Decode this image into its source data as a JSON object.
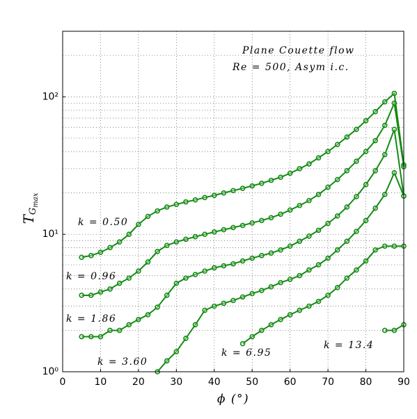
{
  "chart_data": {
    "type": "line",
    "title_line1": "Plane Couette flow",
    "title_line2": "Re = 500,  Asym i.c.",
    "x_label": "ϕ (°)",
    "y_label": "T",
    "y_label_sub": "G",
    "y_label_subsub": "max",
    "x": [
      5,
      7.5,
      10,
      12.5,
      15,
      17.5,
      20,
      22.5,
      25,
      27.5,
      30,
      32.5,
      35,
      37.5,
      40,
      42.5,
      45,
      47.5,
      50,
      52.5,
      55,
      57.5,
      60,
      62.5,
      65,
      67.5,
      70,
      72.5,
      75,
      77.5,
      80,
      82.5,
      85,
      87.5,
      90
    ],
    "series": [
      {
        "name": "k = 0.50",
        "color": "#138a13",
        "values": [
          6.8,
          7.0,
          7.4,
          8.0,
          8.8,
          10.0,
          11.8,
          13.5,
          14.8,
          15.8,
          16.5,
          17.2,
          17.8,
          18.5,
          19.2,
          20.0,
          20.8,
          21.6,
          22.5,
          23.5,
          24.7,
          26,
          27.8,
          30,
          32.5,
          36,
          40,
          45,
          51,
          58,
          67,
          78,
          92,
          106,
          32
        ]
      },
      {
        "name": "k = 0.96",
        "color": "#138a13",
        "values": [
          3.6,
          3.6,
          3.8,
          4.0,
          4.4,
          4.8,
          5.4,
          6.3,
          7.5,
          8.3,
          8.8,
          9.2,
          9.6,
          10.0,
          10.4,
          10.8,
          11.2,
          11.6,
          12.1,
          12.6,
          13.2,
          14.0,
          15.0,
          16.2,
          17.6,
          19.5,
          22,
          25,
          29,
          34,
          40,
          48,
          62,
          90,
          31
        ]
      },
      {
        "name": "k = 1.86",
        "color": "#138a13",
        "values": [
          1.8,
          1.8,
          1.8,
          2.0,
          2.0,
          2.2,
          2.4,
          2.6,
          2.95,
          3.6,
          4.4,
          4.8,
          5.1,
          5.4,
          5.7,
          5.9,
          6.1,
          6.4,
          6.7,
          7.0,
          7.3,
          7.7,
          8.2,
          8.9,
          9.7,
          10.7,
          12,
          13.6,
          15.8,
          18.8,
          23,
          29,
          38,
          58,
          19
        ]
      },
      {
        "name": "k = 3.60",
        "color": "#138a13",
        "values": [
          null,
          null,
          null,
          null,
          null,
          null,
          null,
          null,
          1.0,
          1.2,
          1.4,
          1.75,
          2.2,
          2.8,
          3.0,
          3.15,
          3.3,
          3.5,
          3.7,
          3.9,
          4.15,
          4.45,
          4.7,
          5.0,
          5.5,
          6.0,
          6.7,
          7.7,
          8.9,
          10.5,
          12.6,
          15.5,
          19.5,
          28,
          19
        ]
      },
      {
        "name": "k = 6.95",
        "color": "#138a13",
        "values": [
          null,
          null,
          null,
          null,
          null,
          null,
          null,
          null,
          null,
          null,
          null,
          null,
          null,
          null,
          null,
          null,
          null,
          1.6,
          1.8,
          2.0,
          2.2,
          2.4,
          2.6,
          2.8,
          3.0,
          3.25,
          3.6,
          4.1,
          4.8,
          5.5,
          6.4,
          7.7,
          8.2,
          8.2,
          8.2
        ]
      },
      {
        "name": "k = 13.4",
        "color": "#138a13",
        "values": [
          null,
          null,
          null,
          null,
          null,
          null,
          null,
          null,
          null,
          null,
          null,
          null,
          null,
          null,
          null,
          null,
          null,
          null,
          null,
          null,
          null,
          null,
          null,
          null,
          null,
          null,
          null,
          null,
          null,
          null,
          null,
          null,
          2.0,
          2.0,
          2.2
        ]
      }
    ],
    "xlim": [
      0,
      90
    ],
    "xticks": [
      0,
      10,
      20,
      30,
      40,
      50,
      60,
      70,
      80,
      90
    ],
    "ylim": [
      1,
      300
    ],
    "log_y": true,
    "yticks": [
      {
        "value": 1,
        "label": "10⁰"
      },
      {
        "value": 10,
        "label": "10¹"
      },
      {
        "value": 100,
        "label": "10²"
      }
    ],
    "grid": true
  }
}
